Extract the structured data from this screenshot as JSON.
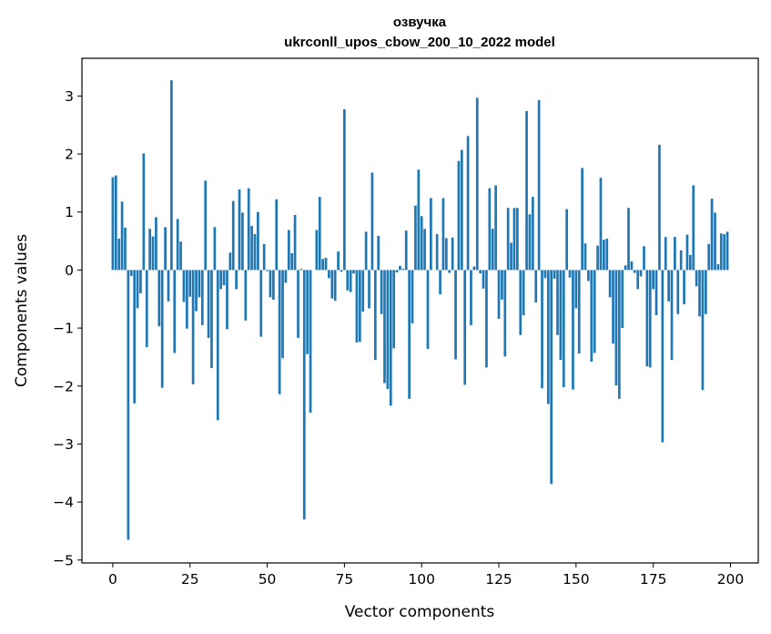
{
  "chart_data": {
    "type": "bar",
    "title_line1": "озвучка",
    "title_line2": "ukrconll_upos_cbow_200_10_2022 model",
    "xlabel": "Vector components",
    "ylabel": "Components values",
    "xlim": [
      -10,
      209
    ],
    "ylim": [
      -5.05,
      3.65
    ],
    "xticks": [
      0,
      25,
      50,
      75,
      100,
      125,
      150,
      175,
      200
    ],
    "yticks": [
      3,
      2,
      1,
      0,
      -1,
      -2,
      -3,
      -4,
      -5
    ],
    "xtick_labels": [
      "0",
      "25",
      "50",
      "75",
      "100",
      "125",
      "150",
      "175",
      "200"
    ],
    "ytick_labels": [
      "3",
      "2",
      "1",
      "0",
      "−1",
      "−2",
      "−3",
      "−4",
      "−5"
    ],
    "color": "#1f77b4",
    "values": [
      1.6,
      1.63,
      0.54,
      1.18,
      0.73,
      -4.65,
      -0.1,
      -2.3,
      -0.66,
      -0.4,
      2.01,
      -1.33,
      0.71,
      0.58,
      0.91,
      -0.97,
      -2.03,
      0.74,
      -0.54,
      3.27,
      -1.43,
      0.88,
      0.49,
      -0.55,
      -1.01,
      -0.46,
      -1.97,
      -0.71,
      -0.47,
      -0.95,
      1.54,
      -1.17,
      -1.69,
      0.74,
      -2.59,
      -0.33,
      -0.26,
      -1.02,
      0.3,
      1.19,
      -0.33,
      1.39,
      0.99,
      -0.87,
      1.41,
      0.76,
      0.62,
      1.0,
      -1.15,
      0.45,
      -0.02,
      -0.47,
      -0.51,
      1.22,
      -2.14,
      -1.52,
      -0.22,
      0.69,
      0.29,
      0.95,
      -1.17,
      0.02,
      -4.3,
      -1.45,
      -2.46,
      0.0,
      0.69,
      1.26,
      0.19,
      0.21,
      -0.14,
      -0.49,
      -0.53,
      0.32,
      -0.03,
      2.77,
      -0.35,
      -0.38,
      -0.06,
      -1.25,
      -1.24,
      -0.72,
      0.66,
      -0.66,
      1.68,
      -1.55,
      0.59,
      -0.76,
      -1.95,
      -2.05,
      -2.34,
      -1.35,
      -0.04,
      0.07,
      0.02,
      0.68,
      -2.22,
      -0.92,
      1.11,
      1.73,
      0.93,
      0.71,
      -1.36,
      1.24,
      0.0,
      0.62,
      -0.42,
      1.24,
      0.55,
      -0.05,
      0.56,
      -1.54,
      1.88,
      2.07,
      -1.98,
      2.31,
      -0.95,
      0.06,
      2.97,
      -0.06,
      -0.32,
      -1.68,
      1.41,
      0.71,
      1.46,
      -0.84,
      -0.51,
      -1.49,
      1.07,
      0.47,
      1.07,
      1.07,
      -1.12,
      -0.78,
      2.74,
      0.96,
      1.26,
      -0.56,
      2.93,
      -2.04,
      -0.14,
      -2.31,
      -3.69,
      -0.15,
      -1.12,
      -1.55,
      -2.02,
      1.05,
      -0.13,
      -2.06,
      -0.66,
      -1.44,
      1.76,
      0.46,
      -0.19,
      -1.58,
      -1.43,
      0.42,
      1.59,
      0.52,
      0.54,
      -0.47,
      -1.27,
      -1.99,
      -2.22,
      -1.0,
      0.08,
      1.07,
      0.15,
      -0.05,
      -0.33,
      -0.11,
      0.41,
      -1.66,
      -1.68,
      -0.33,
      -0.78,
      2.16,
      -2.97,
      0.57,
      -0.54,
      -1.55,
      0.57,
      -0.76,
      0.34,
      -0.59,
      0.61,
      0.26,
      1.46,
      -0.28,
      -0.8,
      -2.07,
      -0.76,
      0.45,
      1.23,
      0.99,
      0.1,
      0.63,
      0.62,
      0.66
    ]
  }
}
